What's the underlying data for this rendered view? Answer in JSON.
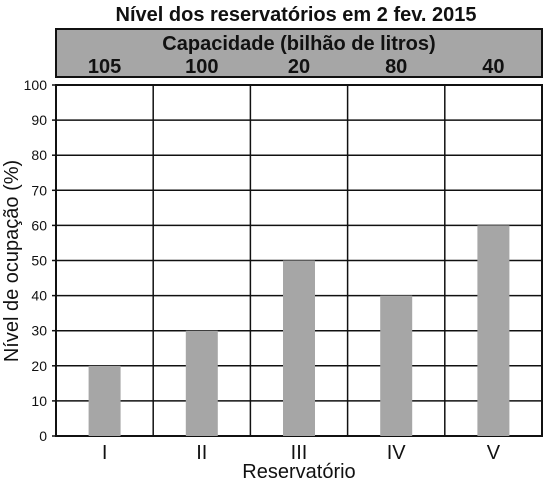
{
  "chart_data": {
    "type": "bar",
    "title": "Nível dos reservatórios em 2 fev. 2015",
    "header_label": "Capacidade (bilhão de litros)",
    "header_values": [
      "105",
      "100",
      "20",
      "80",
      "40"
    ],
    "categories": [
      "I",
      "II",
      "III",
      "IV",
      "V"
    ],
    "values": [
      20,
      30,
      50,
      40,
      60
    ],
    "xlabel": "Reservatório",
    "ylabel": "Nível de ocupação (%)",
    "ylim": [
      0,
      100
    ],
    "yticks": [
      0,
      10,
      20,
      30,
      40,
      50,
      60,
      70,
      80,
      90,
      100
    ],
    "grid": true,
    "bar_color": "#a6a6a6",
    "header_color": "#a6a6a6",
    "line_color": "#111111"
  }
}
